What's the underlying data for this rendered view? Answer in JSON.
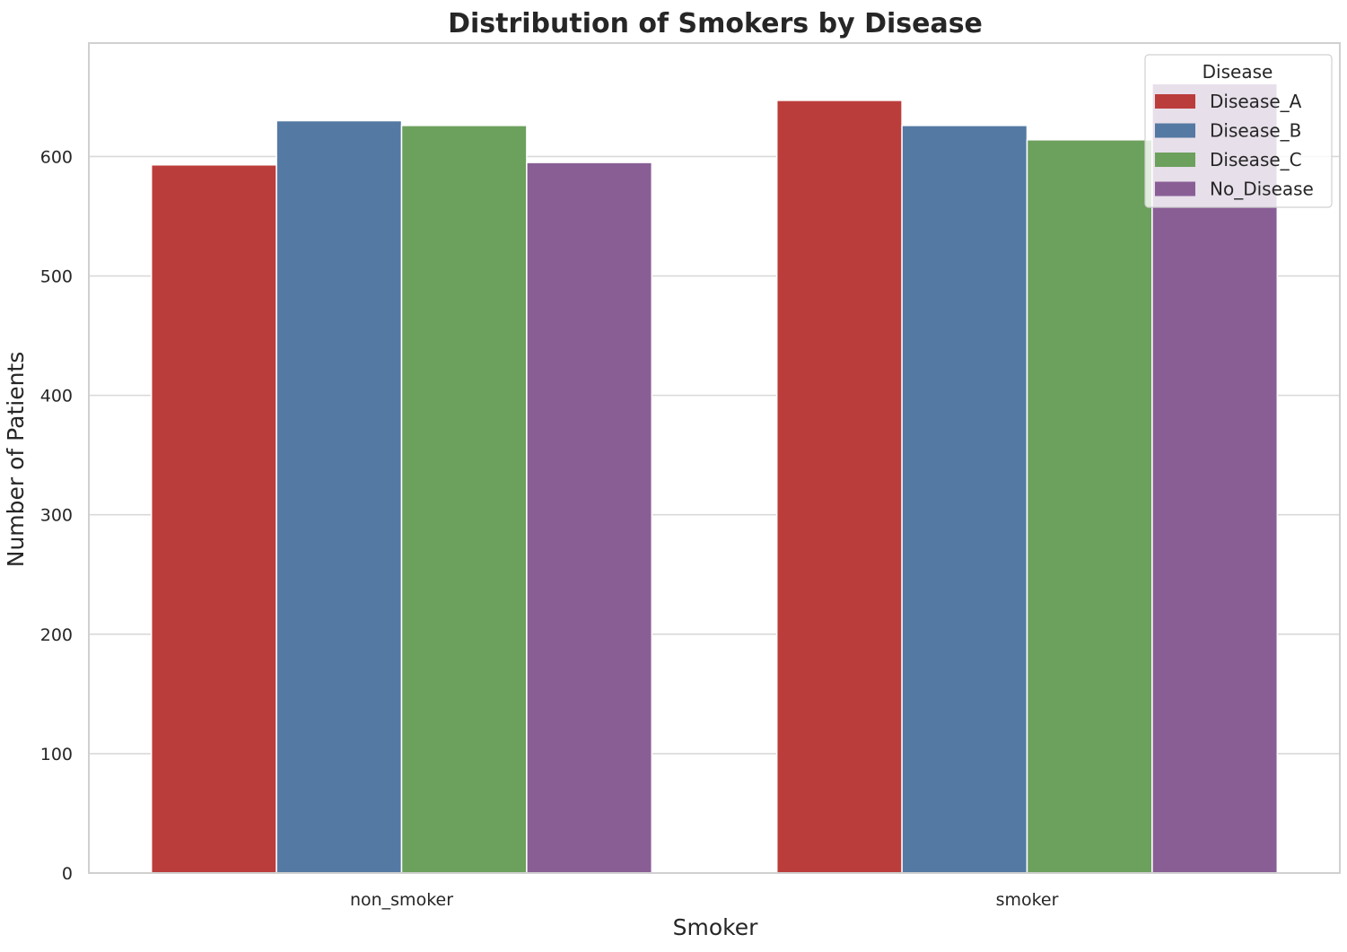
{
  "chart_data": {
    "type": "bar",
    "title": "Distribution of Smokers by Disease",
    "xlabel": "Smoker",
    "ylabel": "Number of Patients",
    "categories": [
      "non_smoker",
      "smoker"
    ],
    "series": [
      {
        "name": "Disease_A",
        "values": [
          593,
          647
        ],
        "color": "#bb3d3b"
      },
      {
        "name": "Disease_B",
        "values": [
          630,
          626
        ],
        "color": "#5479a3"
      },
      {
        "name": "Disease_C",
        "values": [
          626,
          614
        ],
        "color": "#6ca05d"
      },
      {
        "name": "No_Disease",
        "values": [
          595,
          661
        ],
        "color": "#895e95"
      }
    ],
    "ylim": [
      0,
      695
    ],
    "yticks": [
      0,
      100,
      200,
      300,
      400,
      500,
      600
    ],
    "grid": true,
    "legend": {
      "title": "Disease",
      "placement": "top-right"
    }
  }
}
